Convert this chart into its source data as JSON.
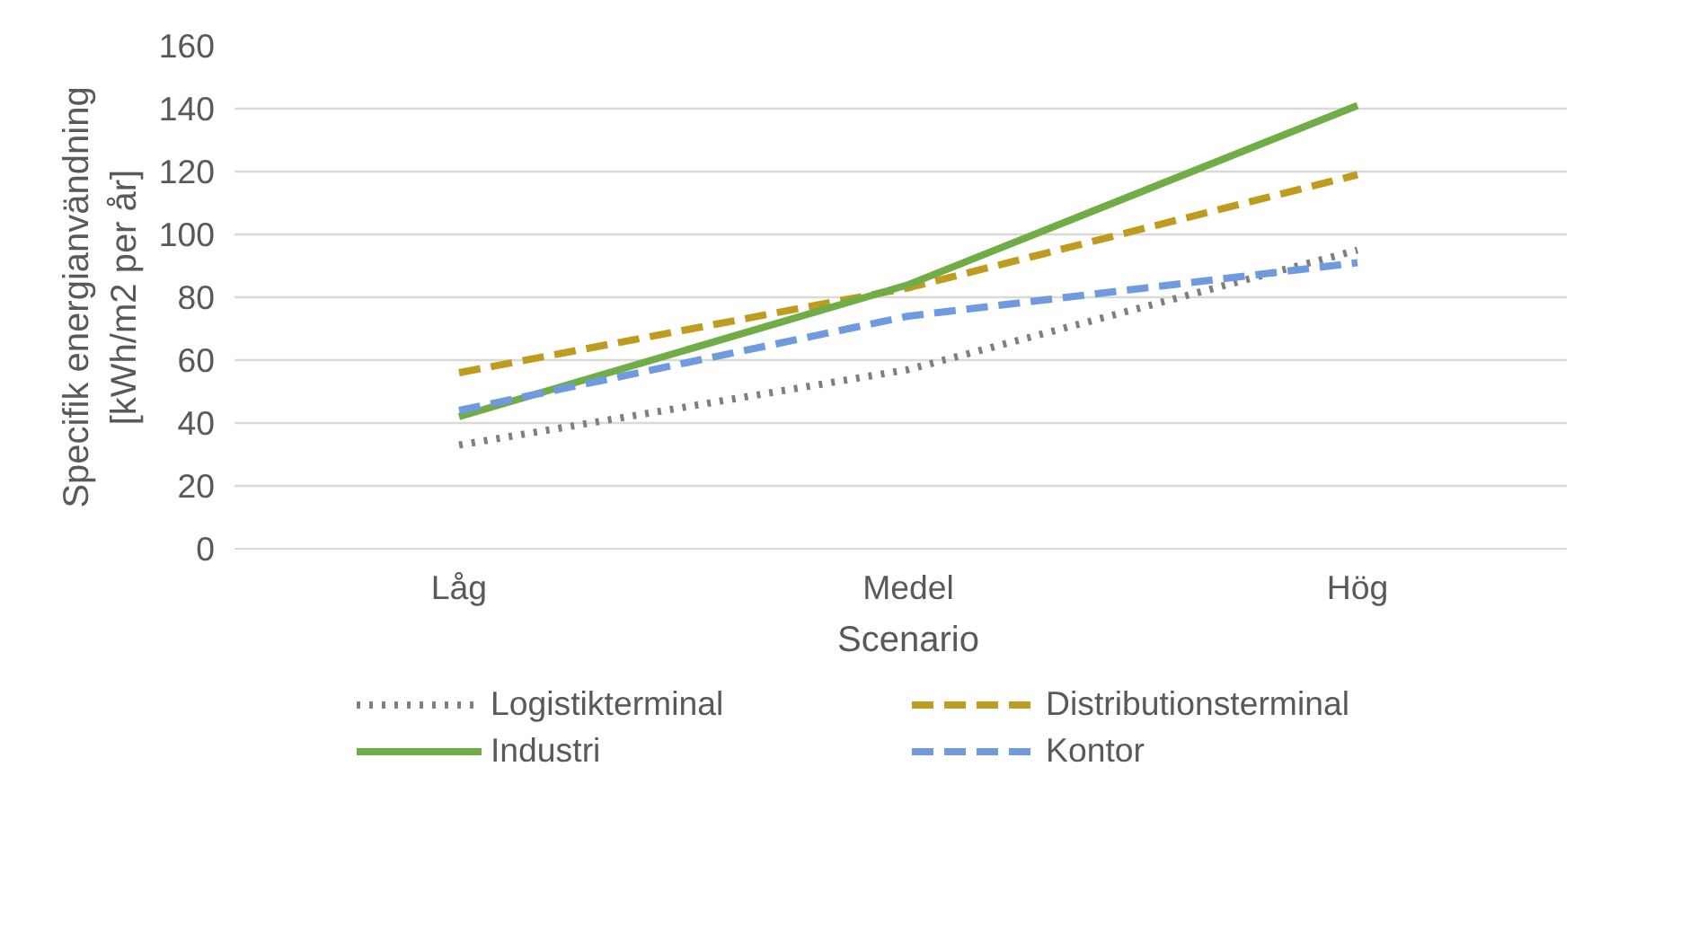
{
  "chart_data": {
    "type": "line",
    "xlabel": "Scenario",
    "ylabel": "Specifik energianvändning [kWh/m2 per år]",
    "categories": [
      "Låg",
      "Medel",
      "Hög"
    ],
    "series": [
      {
        "name": "Logistikterminal",
        "color": "#7f7f7f",
        "line_style": "dotted",
        "values": [
          33,
          57,
          95
        ]
      },
      {
        "name": "Distributionsterminal",
        "color": "#bf9b1f",
        "line_style": "dashed",
        "values": [
          56,
          83,
          119
        ]
      },
      {
        "name": "Industri",
        "color": "#70ad47",
        "line_style": "solid",
        "values": [
          42,
          84,
          141
        ]
      },
      {
        "name": "Kontor",
        "color": "#6f9ae0",
        "line_style": "dashed",
        "values": [
          44,
          74,
          91
        ]
      }
    ],
    "ylim": [
      0,
      160
    ],
    "yticks": [
      0,
      20,
      40,
      60,
      80,
      100,
      120,
      140,
      160
    ],
    "grid": "y",
    "legend": "bottom",
    "marker": "none"
  }
}
